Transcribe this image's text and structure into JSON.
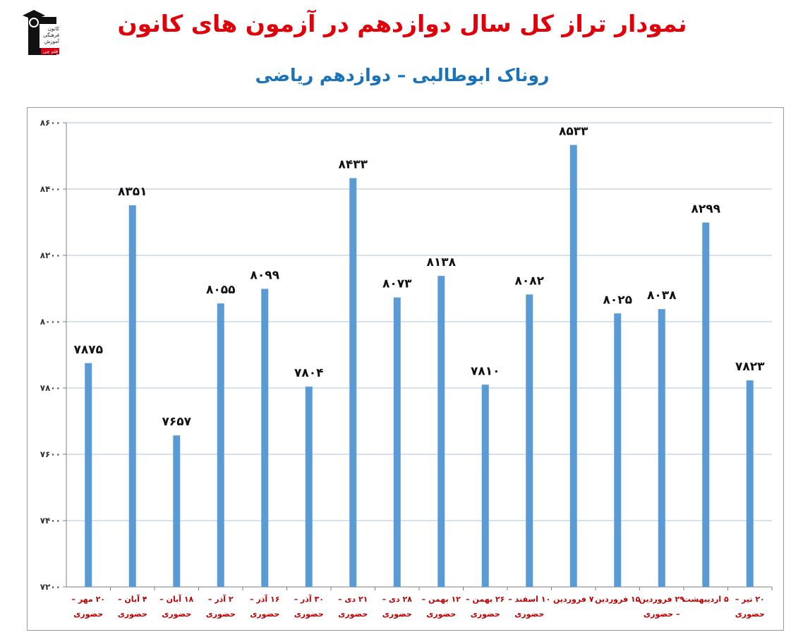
{
  "title": "نمودار تراز کل سال دوازدهم در آزمون های کانون",
  "subtitle": "روناک ابوطالبی – دوازدهم ریاضی",
  "logo": {
    "lines": [
      "کانون",
      "فرهنگی",
      "آموزش",
      "قلم چی"
    ]
  },
  "colors": {
    "bar": "#5b9bd5",
    "title": "#e0000a",
    "subtitle": "#1a72b8",
    "xlabels": "#c00000",
    "grid": "#a7c4e2"
  },
  "chart_data": {
    "type": "bar",
    "title": "نمودار تراز کل سال دوازدهم در آزمون های کانون",
    "subtitle": "روناک ابوطالبی – دوازدهم ریاضی",
    "xlabel": "",
    "ylabel": "",
    "ylim": [
      7200,
      8600
    ],
    "yticks": [
      "۷۲۰۰",
      "۷۴۰۰",
      "۷۶۰۰",
      "۷۸۰۰",
      "۸۰۰۰",
      "۸۲۰۰",
      "۸۴۰۰",
      "۸۶۰۰"
    ],
    "ytick_values": [
      7200,
      7400,
      7600,
      7800,
      8000,
      8200,
      8400,
      8600
    ],
    "grid": true,
    "categories": [
      [
        "۲۰ مهر –",
        "حضوری"
      ],
      [
        "۴ آبان –",
        "حضوری"
      ],
      [
        "۱۸ آبان –",
        "حضوری"
      ],
      [
        "۲ آذر –",
        "حضوری"
      ],
      [
        "۱۶ آذر –",
        "حضوری"
      ],
      [
        "۳۰ آذر –",
        "حضوری"
      ],
      [
        "۲۱ دی –",
        "حضوری"
      ],
      [
        "۲۸ دی –",
        "حضوری"
      ],
      [
        "۱۲ بهمن –",
        "حضوری"
      ],
      [
        "۲۶ بهمن –",
        "حضوری"
      ],
      [
        "۱۰ اسفند –",
        "حضوری"
      ],
      [
        "۷ فروردین"
      ],
      [
        "۱۵ فروردین"
      ],
      [
        "۲۹ فروردین",
        "– حضوری"
      ],
      [
        "۵ اردیبهشت"
      ],
      [
        "۲۰ تیر –",
        "حضوری"
      ]
    ],
    "values": [
      7875,
      8351,
      7657,
      8055,
      8099,
      7804,
      8433,
      8073,
      8138,
      7810,
      8082,
      8533,
      8025,
      8038,
      8299,
      7823
    ],
    "value_labels": [
      "۷۸۷۵",
      "۸۳۵۱",
      "۷۶۵۷",
      "۸۰۵۵",
      "۸۰۹۹",
      "۷۸۰۴",
      "۸۴۳۳",
      "۸۰۷۳",
      "۸۱۳۸",
      "۷۸۱۰",
      "۸۰۸۲",
      "۸۵۳۳",
      "۸۰۲۵",
      "۸۰۳۸",
      "۸۲۹۹",
      "۷۸۲۳"
    ]
  }
}
